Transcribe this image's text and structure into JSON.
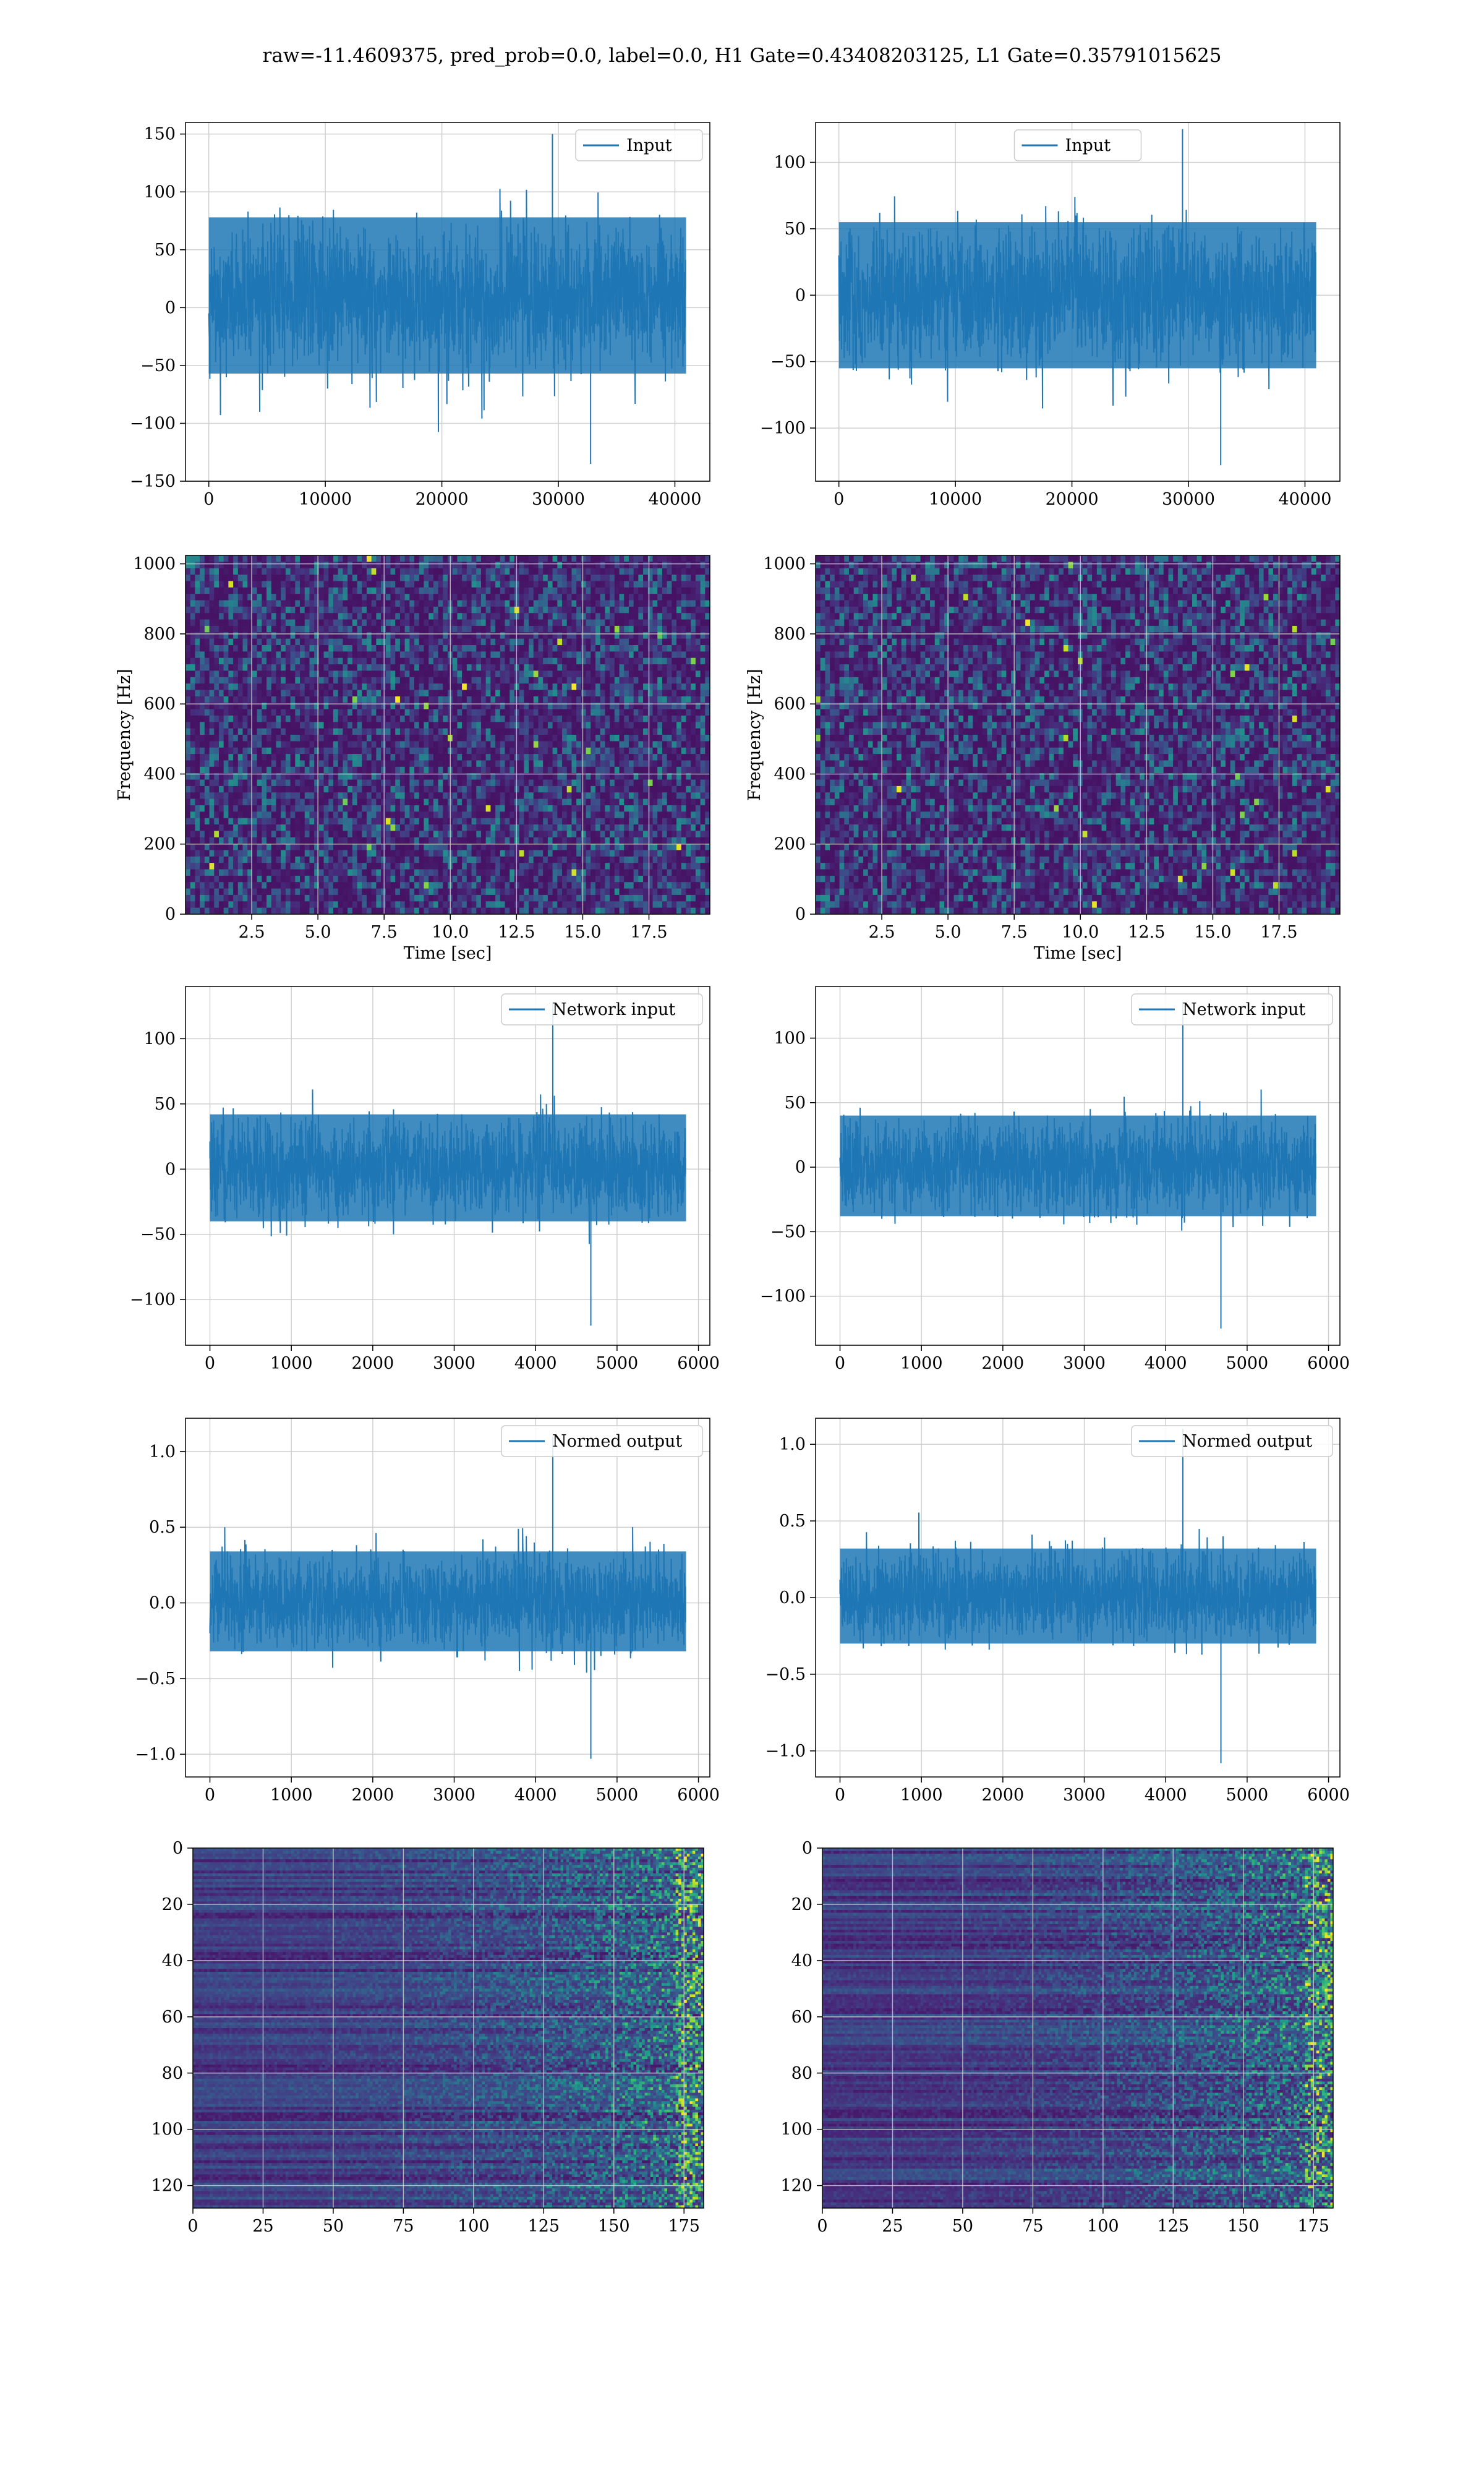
{
  "figure": {
    "title": "raw=-11.4609375, pred_prob=0.0, label=0.0, H1 Gate=0.43408203125, L1 Gate=0.35791015625"
  },
  "colors": {
    "series": "#1f77b4",
    "grid": "#d0d0d0",
    "viridis": [
      "#440154",
      "#482878",
      "#3e4989",
      "#31688e",
      "#26828e",
      "#1f9e89",
      "#35b779",
      "#6ece58",
      "#b5de2b",
      "#fde725"
    ]
  },
  "chart_data": [
    {
      "id": "row1-left",
      "type": "line",
      "legend": "Input",
      "legend_loc": "upper right",
      "grid": true,
      "xlim": [
        -2000,
        43000
      ],
      "ylim": [
        -150,
        160
      ],
      "xticks": [
        0,
        10000,
        20000,
        30000,
        40000
      ],
      "yticks": [
        -150,
        -100,
        -50,
        0,
        50,
        100,
        150
      ],
      "noise": {
        "n": 40960,
        "band_low": -57,
        "band_high": 78,
        "min": -135,
        "max": 150
      }
    },
    {
      "id": "row1-right",
      "type": "line",
      "legend": "Input",
      "legend_loc": "upper center",
      "grid": true,
      "xlim": [
        -2000,
        43000
      ],
      "ylim": [
        -140,
        130
      ],
      "xticks": [
        0,
        10000,
        20000,
        30000,
        40000
      ],
      "yticks": [
        -100,
        -50,
        0,
        50,
        100
      ],
      "noise": {
        "n": 40960,
        "band_low": -55,
        "band_high": 55,
        "min": -128,
        "max": 125
      }
    },
    {
      "id": "row2-left",
      "type": "heatmap",
      "grid": true,
      "xlim": [
        0,
        19.8
      ],
      "ylim": [
        0,
        1024
      ],
      "xticks": [
        2.5,
        5.0,
        7.5,
        10.0,
        12.5,
        15.0,
        17.5
      ],
      "yticks": [
        0,
        200,
        400,
        600,
        800,
        1000
      ],
      "xlabel": "Time [sec]",
      "ylabel": "Frequency [Hz]",
      "rows": 56,
      "cols": 110
    },
    {
      "id": "row2-right",
      "type": "heatmap",
      "grid": true,
      "xlim": [
        0,
        19.8
      ],
      "ylim": [
        0,
        1024
      ],
      "xticks": [
        2.5,
        5.0,
        7.5,
        10.0,
        12.5,
        15.0,
        17.5
      ],
      "yticks": [
        0,
        200,
        400,
        600,
        800,
        1000
      ],
      "xlabel": "Time [sec]",
      "ylabel": "Frequency [Hz]",
      "rows": 56,
      "cols": 110
    },
    {
      "id": "row3-left",
      "type": "line",
      "legend": "Network input",
      "legend_loc": "upper right",
      "grid": true,
      "xlim": [
        -300,
        6140
      ],
      "ylim": [
        -135,
        140
      ],
      "xticks": [
        0,
        1000,
        2000,
        3000,
        4000,
        5000,
        6000
      ],
      "yticks": [
        -100,
        -50,
        0,
        50,
        100
      ],
      "noise": {
        "n": 5848,
        "band_low": -40,
        "band_high": 42,
        "min": -120,
        "max": 128
      }
    },
    {
      "id": "row3-right",
      "type": "line",
      "legend": "Network input",
      "legend_loc": "upper right",
      "grid": true,
      "xlim": [
        -300,
        6140
      ],
      "ylim": [
        -138,
        140
      ],
      "xticks": [
        0,
        1000,
        2000,
        3000,
        4000,
        5000,
        6000
      ],
      "yticks": [
        -100,
        -50,
        0,
        50,
        100
      ],
      "noise": {
        "n": 5848,
        "band_low": -38,
        "band_high": 40,
        "min": -125,
        "max": 128
      }
    },
    {
      "id": "row4-left",
      "type": "line",
      "legend": "Normed output",
      "legend_loc": "upper right",
      "grid": true,
      "xlim": [
        -300,
        6140
      ],
      "ylim": [
        -1.15,
        1.22
      ],
      "xticks": [
        0,
        1000,
        2000,
        3000,
        4000,
        5000,
        6000
      ],
      "yticks": [
        -1.0,
        -0.5,
        0.0,
        0.5,
        1.0
      ],
      "noise": {
        "n": 5848,
        "band_low": -0.32,
        "band_high": 0.34,
        "min": -1.03,
        "max": 1.1
      }
    },
    {
      "id": "row4-right",
      "type": "line",
      "legend": "Normed output",
      "legend_loc": "upper right",
      "grid": true,
      "xlim": [
        -300,
        6140
      ],
      "ylim": [
        -1.17,
        1.17
      ],
      "xticks": [
        0,
        1000,
        2000,
        3000,
        4000,
        5000,
        6000
      ],
      "yticks": [
        -1.0,
        -0.5,
        0.0,
        0.5,
        1.0
      ],
      "noise": {
        "n": 5848,
        "band_low": -0.3,
        "band_high": 0.32,
        "min": -1.08,
        "max": 1.1
      }
    },
    {
      "id": "row5-left",
      "type": "heatmap",
      "grid": true,
      "xlim": [
        0,
        182
      ],
      "ylim": [
        128,
        0
      ],
      "xticks": [
        0,
        25,
        50,
        75,
        100,
        125,
        150,
        175
      ],
      "yticks": [
        0,
        20,
        40,
        60,
        80,
        100,
        120
      ],
      "rows": 128,
      "cols": 182
    },
    {
      "id": "row5-right",
      "type": "heatmap",
      "grid": true,
      "xlim": [
        0,
        182
      ],
      "ylim": [
        128,
        0
      ],
      "xticks": [
        0,
        25,
        50,
        75,
        100,
        125,
        150,
        175
      ],
      "yticks": [
        0,
        20,
        40,
        60,
        80,
        100,
        120
      ],
      "rows": 128,
      "cols": 182
    }
  ]
}
